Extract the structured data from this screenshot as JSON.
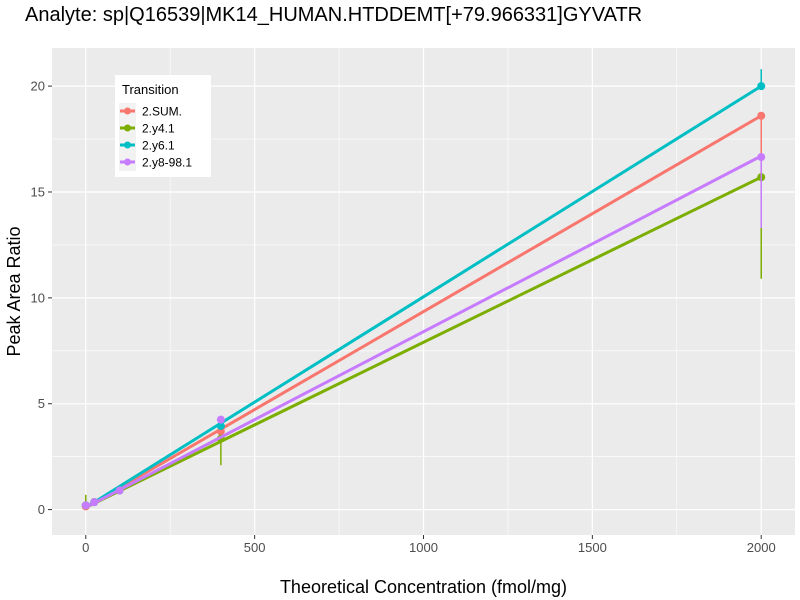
{
  "chart_data": {
    "type": "line",
    "title": "Analyte: sp|Q16539|MK14_HUMAN.HTDDEMT[+79.966331]GYVATR",
    "xlabel": "Theoretical Concentration (fmol/mg)",
    "ylabel": "Peak Area Ratio",
    "xlim": [
      -100,
      2100
    ],
    "ylim": [
      -1.2,
      21.8
    ],
    "xticks": [
      0,
      500,
      1000,
      1500,
      2000
    ],
    "yticks": [
      0,
      5,
      10,
      15,
      20
    ],
    "grid": true,
    "legend": {
      "title": "Transition",
      "placement": "top-left"
    },
    "x": [
      0,
      25,
      100,
      400,
      2000
    ],
    "series": [
      {
        "name": "2.SUM.",
        "color": "#F8766D",
        "values": [
          0.15,
          0.35,
          0.9,
          3.7,
          18.6
        ],
        "err_low": [
          null,
          null,
          null,
          null,
          15.1
        ],
        "err_high": [
          0.5,
          null,
          null,
          null,
          18.6
        ],
        "fit": [
          0.1,
          18.6
        ]
      },
      {
        "name": "2.y4.1",
        "color": "#7CAE00",
        "values": [
          0.2,
          0.35,
          0.9,
          3.35,
          15.7
        ],
        "err_low": [
          null,
          null,
          null,
          2.1,
          10.9
        ],
        "err_high": [
          0.7,
          null,
          null,
          null,
          15.7
        ],
        "fit": [
          0.1,
          15.7
        ]
      },
      {
        "name": "2.y6.1",
        "color": "#00BFC4",
        "values": [
          0.2,
          0.35,
          0.9,
          3.95,
          20.0
        ],
        "err_low": [
          null,
          null,
          null,
          null,
          20.0
        ],
        "err_high": [
          null,
          null,
          null,
          null,
          20.8
        ],
        "fit": [
          0.1,
          20.0
        ]
      },
      {
        "name": "2.y8-98.1",
        "color": "#C77CFF",
        "values": [
          0.2,
          0.35,
          0.9,
          4.25,
          16.65
        ],
        "err_low": [
          null,
          null,
          null,
          null,
          13.3
        ],
        "err_high": [
          null,
          null,
          null,
          null,
          16.65
        ],
        "fit": [
          0.1,
          16.7
        ]
      }
    ]
  }
}
